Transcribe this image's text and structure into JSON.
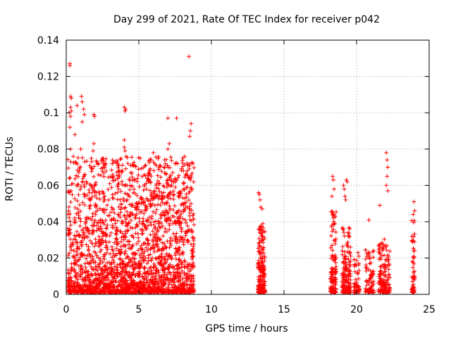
{
  "chart_data": {
    "type": "scatter",
    "title": "Day 299 of 2021, Rate Of TEC Index for receiver p042",
    "xlabel": "GPS time / hours",
    "ylabel": "ROTI / TECUs",
    "xlim": [
      0,
      25
    ],
    "ylim": [
      0,
      0.14
    ],
    "xticks": [
      0,
      5,
      10,
      15,
      20,
      25
    ],
    "yticks": [
      0,
      0.02,
      0.04,
      0.06,
      0.08,
      0.1,
      0.12,
      0.14
    ],
    "xtick_labels": [
      "0",
      "5",
      "10",
      "15",
      "20",
      "25"
    ],
    "ytick_labels": [
      "0",
      "0.02",
      "0.04",
      "0.06",
      "0.08",
      "0.1",
      "0.12",
      "0.14"
    ],
    "grid": true,
    "marker": "+",
    "color": "#ff0000",
    "clusters": [
      {
        "x_range": [
          0.1,
          8.8
        ],
        "y_max": 0.075,
        "density": 2400
      },
      {
        "x_range": [
          13.2,
          13.7
        ],
        "y_max": 0.038,
        "density": 180
      },
      {
        "x_range": [
          18.2,
          18.6
        ],
        "y_max": 0.045,
        "density": 120
      },
      {
        "x_range": [
          19.0,
          19.6
        ],
        "y_max": 0.036,
        "density": 160
      },
      {
        "x_range": [
          19.8,
          20.2
        ],
        "y_max": 0.02,
        "density": 50
      },
      {
        "x_range": [
          20.6,
          21.2
        ],
        "y_max": 0.025,
        "density": 80
      },
      {
        "x_range": [
          21.5,
          22.3
        ],
        "y_max": 0.03,
        "density": 140
      },
      {
        "x_range": [
          23.8,
          24.0
        ],
        "y_max": 0.04,
        "density": 60
      }
    ],
    "points": [
      [
        0.25,
        0.127
      ],
      [
        0.25,
        0.126
      ],
      [
        0.3,
        0.109
      ],
      [
        0.35,
        0.108
      ],
      [
        0.3,
        0.103
      ],
      [
        0.35,
        0.101
      ],
      [
        0.2,
        0.1
      ],
      [
        0.3,
        0.098
      ],
      [
        0.75,
        0.104
      ],
      [
        1.05,
        0.109
      ],
      [
        1.1,
        0.106
      ],
      [
        1.2,
        0.102
      ],
      [
        1.25,
        0.099
      ],
      [
        1.1,
        0.095
      ],
      [
        1.9,
        0.099
      ],
      [
        1.95,
        0.098
      ],
      [
        4.0,
        0.103
      ],
      [
        4.05,
        0.101
      ],
      [
        4.1,
        0.102
      ],
      [
        8.45,
        0.131
      ],
      [
        7.0,
        0.097
      ],
      [
        7.6,
        0.097
      ],
      [
        8.6,
        0.094
      ],
      [
        8.55,
        0.09
      ],
      [
        8.5,
        0.087
      ],
      [
        0.25,
        0.092
      ],
      [
        0.6,
        0.088
      ],
      [
        1.0,
        0.08
      ],
      [
        1.9,
        0.083
      ],
      [
        1.85,
        0.079
      ],
      [
        4.0,
        0.085
      ],
      [
        4.0,
        0.081
      ],
      [
        4.05,
        0.079
      ],
      [
        7.1,
        0.083
      ],
      [
        7.0,
        0.08
      ],
      [
        6.0,
        0.078
      ],
      [
        0.3,
        0.08
      ],
      [
        5.75,
        0.066
      ],
      [
        6.2,
        0.071
      ],
      [
        7.5,
        0.072
      ],
      [
        13.25,
        0.056
      ],
      [
        13.3,
        0.055
      ],
      [
        13.35,
        0.052
      ],
      [
        13.4,
        0.048
      ],
      [
        13.5,
        0.047
      ],
      [
        18.35,
        0.065
      ],
      [
        18.4,
        0.063
      ],
      [
        18.45,
        0.058
      ],
      [
        18.3,
        0.054
      ],
      [
        19.1,
        0.06
      ],
      [
        19.15,
        0.058
      ],
      [
        19.3,
        0.063
      ],
      [
        19.35,
        0.062
      ],
      [
        19.2,
        0.054
      ],
      [
        19.25,
        0.052
      ],
      [
        20.1,
        0.023
      ],
      [
        20.15,
        0.021
      ],
      [
        20.85,
        0.041
      ],
      [
        21.6,
        0.049
      ],
      [
        22.05,
        0.078
      ],
      [
        22.1,
        0.074
      ],
      [
        22.15,
        0.07
      ],
      [
        22.1,
        0.065
      ],
      [
        22.05,
        0.06
      ],
      [
        22.15,
        0.057
      ],
      [
        23.95,
        0.051
      ],
      [
        24.0,
        0.046
      ],
      [
        23.9,
        0.044
      ]
    ]
  }
}
